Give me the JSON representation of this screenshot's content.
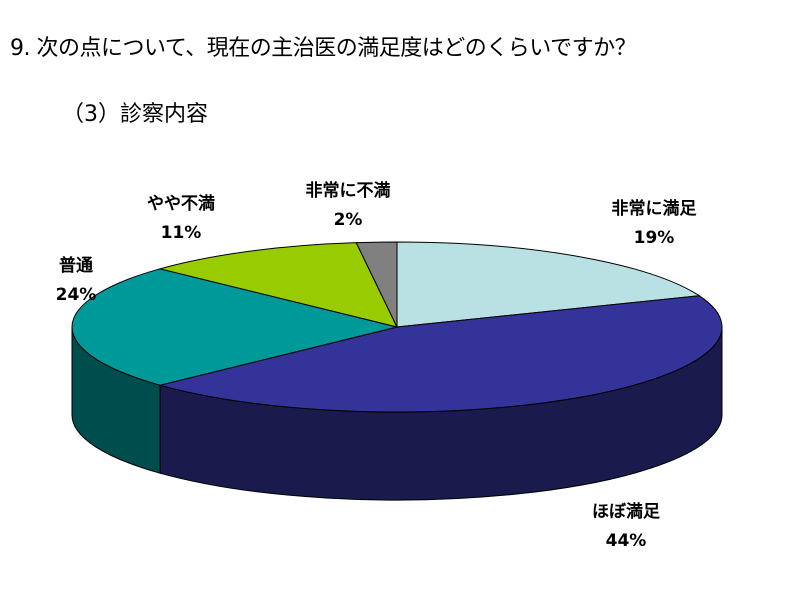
{
  "title": "9. 次の点について、現在の主治医の満足度はどのくらいですか？",
  "subtitle": "（3）診察内容",
  "chart_data": {
    "type": "pie",
    "style": "3d",
    "title": "9. 次の点について、現在の主治医の満足度はどのくらいですか？",
    "subtitle": "（3）診察内容",
    "slices": [
      {
        "label": "非常に満足",
        "value": 19,
        "pct_label": "19%",
        "color": "#b9e1e3"
      },
      {
        "label": "ほぼ満足",
        "value": 44,
        "pct_label": "44%",
        "color": "#333399"
      },
      {
        "label": "普通",
        "value": 24,
        "pct_label": "24%",
        "color": "#009999"
      },
      {
        "label": "やや不満",
        "value": 11,
        "pct_label": "11%",
        "color": "#99cc00"
      },
      {
        "label": "非常に不満",
        "value": 2,
        "pct_label": "2%",
        "color": "#808080"
      }
    ]
  }
}
